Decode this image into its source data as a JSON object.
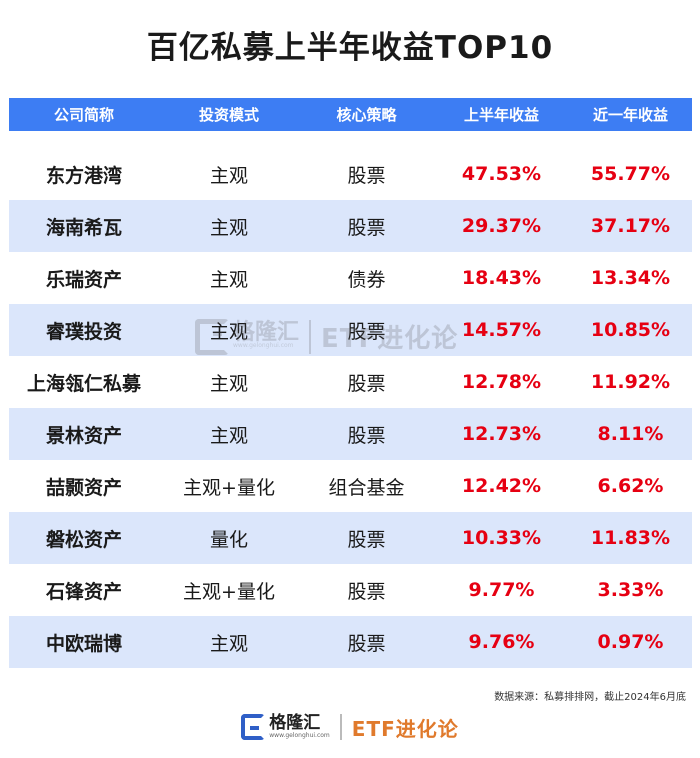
{
  "title": "百亿私募上半年收益TOP10",
  "chart_data": {
    "type": "table",
    "columns": [
      "公司简称",
      "投资模式",
      "核心策略",
      "上半年收益",
      "近一年收益"
    ],
    "rows": [
      [
        "东方港湾",
        "主观",
        "股票",
        "47.53%",
        "55.77%"
      ],
      [
        "海南希瓦",
        "主观",
        "股票",
        "29.37%",
        "37.17%"
      ],
      [
        "乐瑞资产",
        "主观",
        "债券",
        "18.43%",
        "13.34%"
      ],
      [
        "睿璞投资",
        "主观",
        "股票",
        "14.57%",
        "10.85%"
      ],
      [
        "上海瓴仁私募",
        "主观",
        "股票",
        "12.78%",
        "11.92%"
      ],
      [
        "景林资产",
        "主观",
        "股票",
        "12.73%",
        "8.11%"
      ],
      [
        "喆颢资产",
        "主观+量化",
        "组合基金",
        "12.42%",
        "6.62%"
      ],
      [
        "磐松资产",
        "量化",
        "股票",
        "10.33%",
        "11.83%"
      ],
      [
        "石锋资产",
        "主观+量化",
        "股票",
        "9.77%",
        "3.33%"
      ],
      [
        "中欧瑞博",
        "主观",
        "股票",
        "9.76%",
        "0.97%"
      ]
    ]
  },
  "footnote": "数据来源：私募排排网，截止2024年6月底",
  "brand": {
    "logo_cn": "格隆汇",
    "logo_url": "www.gelonghui.com",
    "etf": "ETF进化论"
  },
  "colors": {
    "header_bg": "#3d7df3",
    "alt_row_bg": "#dbe6fb",
    "return_text": "#e60012",
    "etf_text": "#e07a2c"
  }
}
